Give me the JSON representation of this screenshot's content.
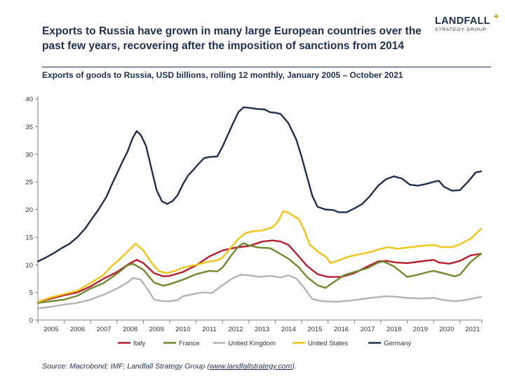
{
  "header": {
    "headline": "Exports to Russia have grown in many large European countries over the past few years, recovering after the imposition of sanctions from 2014",
    "logo_name": "LANDFALL",
    "logo_sub": "STRATEGY GROUP"
  },
  "chart_data": {
    "type": "line",
    "title": "Exports of goods to Russia, USD billions, rolling 12 monthly, January 2005 – October 2021",
    "xlabel": "",
    "ylabel": "USD billions",
    "xlim": [
      2005,
      2021.83
    ],
    "ylim": [
      0,
      40
    ],
    "yticks": [
      "0",
      "5",
      "10",
      "15",
      "20",
      "25",
      "30",
      "35",
      "40"
    ],
    "yticks_values": [
      0,
      5,
      10,
      15,
      20,
      25,
      30,
      35,
      40
    ],
    "xticks": [
      "2005",
      "2006",
      "2007",
      "2008",
      "2009",
      "2010",
      "2011",
      "2012",
      "2013",
      "2014",
      "2015",
      "2016",
      "2017",
      "2018",
      "2019",
      "2020",
      "2021"
    ],
    "legend_position": "bottom",
    "series": [
      {
        "name": "Italy",
        "color": "#b81f2e",
        "points": [
          [
            2005,
            3.3
          ],
          [
            2005.5,
            3.9
          ],
          [
            2006,
            4.5
          ],
          [
            2006.5,
            5.0
          ],
          [
            2007,
            6.1
          ],
          [
            2007.5,
            7.5
          ],
          [
            2008,
            8.7
          ],
          [
            2008.5,
            10.3
          ],
          [
            2008.75,
            10.9
          ],
          [
            2009,
            10.3
          ],
          [
            2009.4,
            8.5
          ],
          [
            2009.75,
            7.9
          ],
          [
            2010,
            8.0
          ],
          [
            2010.5,
            8.7
          ],
          [
            2011,
            9.9
          ],
          [
            2011.5,
            11.5
          ],
          [
            2012,
            12.6
          ],
          [
            2012.5,
            13.1
          ],
          [
            2013,
            13.4
          ],
          [
            2013.5,
            14.2
          ],
          [
            2013.9,
            14.4
          ],
          [
            2014.2,
            14.2
          ],
          [
            2014.5,
            13.6
          ],
          [
            2014.8,
            12.0
          ],
          [
            2015.2,
            9.8
          ],
          [
            2015.6,
            8.3
          ],
          [
            2016,
            7.8
          ],
          [
            2016.5,
            7.8
          ],
          [
            2017,
            8.5
          ],
          [
            2017.5,
            9.7
          ],
          [
            2017.9,
            10.6
          ],
          [
            2018.2,
            10.7
          ],
          [
            2018.6,
            10.4
          ],
          [
            2019,
            10.3
          ],
          [
            2019.5,
            10.6
          ],
          [
            2020,
            10.9
          ],
          [
            2020.2,
            10.4
          ],
          [
            2020.6,
            10.2
          ],
          [
            2021,
            10.7
          ],
          [
            2021.4,
            11.7
          ],
          [
            2021.8,
            12.0
          ]
        ]
      },
      {
        "name": "France",
        "color": "#6f8a2e",
        "points": [
          [
            2005,
            3.1
          ],
          [
            2005.5,
            3.4
          ],
          [
            2006,
            3.7
          ],
          [
            2006.5,
            4.4
          ],
          [
            2007,
            5.7
          ],
          [
            2007.5,
            6.7
          ],
          [
            2008,
            8.4
          ],
          [
            2008.4,
            9.9
          ],
          [
            2008.6,
            10.2
          ],
          [
            2009,
            9.1
          ],
          [
            2009.4,
            6.8
          ],
          [
            2009.75,
            6.2
          ],
          [
            2010,
            6.5
          ],
          [
            2010.5,
            7.3
          ],
          [
            2011,
            8.3
          ],
          [
            2011.5,
            8.9
          ],
          [
            2011.8,
            8.8
          ],
          [
            2012,
            9.5
          ],
          [
            2012.3,
            11.5
          ],
          [
            2012.6,
            13.3
          ],
          [
            2012.8,
            13.9
          ],
          [
            2013,
            13.5
          ],
          [
            2013.4,
            13.1
          ],
          [
            2013.8,
            13.0
          ],
          [
            2014,
            12.5
          ],
          [
            2014.5,
            11.1
          ],
          [
            2014.9,
            9.5
          ],
          [
            2015.2,
            7.8
          ],
          [
            2015.6,
            6.3
          ],
          [
            2015.9,
            5.8
          ],
          [
            2016.2,
            6.8
          ],
          [
            2016.6,
            8.1
          ],
          [
            2017,
            8.7
          ],
          [
            2017.5,
            9.4
          ],
          [
            2017.9,
            10.4
          ],
          [
            2018.1,
            10.6
          ],
          [
            2018.5,
            9.7
          ],
          [
            2019,
            7.8
          ],
          [
            2019.4,
            8.2
          ],
          [
            2019.8,
            8.7
          ],
          [
            2020,
            8.9
          ],
          [
            2020.5,
            8.3
          ],
          [
            2020.8,
            7.9
          ],
          [
            2021,
            8.2
          ],
          [
            2021.4,
            10.5
          ],
          [
            2021.8,
            12.0
          ]
        ]
      },
      {
        "name": "United Kingdom",
        "color": "#b4b4b4",
        "points": [
          [
            2005,
            2.1
          ],
          [
            2005.5,
            2.4
          ],
          [
            2006,
            2.8
          ],
          [
            2006.5,
            3.1
          ],
          [
            2007,
            3.7
          ],
          [
            2007.5,
            4.6
          ],
          [
            2008,
            5.7
          ],
          [
            2008.4,
            6.8
          ],
          [
            2008.6,
            7.6
          ],
          [
            2008.9,
            7.3
          ],
          [
            2009.2,
            5.3
          ],
          [
            2009.4,
            3.7
          ],
          [
            2009.75,
            3.4
          ],
          [
            2010,
            3.4
          ],
          [
            2010.3,
            3.6
          ],
          [
            2010.5,
            4.3
          ],
          [
            2011,
            4.8
          ],
          [
            2011.3,
            5.0
          ],
          [
            2011.6,
            4.9
          ],
          [
            2012,
            6.3
          ],
          [
            2012.4,
            7.6
          ],
          [
            2012.7,
            8.2
          ],
          [
            2013,
            8.1
          ],
          [
            2013.4,
            7.8
          ],
          [
            2013.8,
            8.0
          ],
          [
            2014.2,
            7.7
          ],
          [
            2014.5,
            8.1
          ],
          [
            2014.8,
            7.5
          ],
          [
            2015.1,
            5.8
          ],
          [
            2015.4,
            3.8
          ],
          [
            2015.8,
            3.4
          ],
          [
            2016.3,
            3.3
          ],
          [
            2016.8,
            3.5
          ],
          [
            2017.3,
            3.8
          ],
          [
            2017.8,
            4.1
          ],
          [
            2018.2,
            4.3
          ],
          [
            2018.6,
            4.2
          ],
          [
            2019,
            4.0
          ],
          [
            2019.5,
            3.9
          ],
          [
            2020,
            4.0
          ],
          [
            2020.4,
            3.6
          ],
          [
            2020.8,
            3.4
          ],
          [
            2021.2,
            3.6
          ],
          [
            2021.8,
            4.2
          ]
        ]
      },
      {
        "name": "United States",
        "color": "#f2c318",
        "points": [
          [
            2005,
            3.3
          ],
          [
            2005.5,
            4.1
          ],
          [
            2006,
            4.7
          ],
          [
            2006.5,
            5.3
          ],
          [
            2007,
            6.7
          ],
          [
            2007.5,
            8.2
          ],
          [
            2007.8,
            9.8
          ],
          [
            2008.1,
            11.0
          ],
          [
            2008.4,
            12.4
          ],
          [
            2008.7,
            13.8
          ],
          [
            2009,
            12.6
          ],
          [
            2009.3,
            10.4
          ],
          [
            2009.6,
            8.8
          ],
          [
            2009.9,
            8.5
          ],
          [
            2010.2,
            8.9
          ],
          [
            2010.5,
            9.5
          ],
          [
            2011,
            10.0
          ],
          [
            2011.5,
            10.6
          ],
          [
            2011.8,
            10.8
          ],
          [
            2012,
            11.3
          ],
          [
            2012.3,
            13.0
          ],
          [
            2012.6,
            14.7
          ],
          [
            2012.9,
            15.8
          ],
          [
            2013.2,
            16.1
          ],
          [
            2013.5,
            16.2
          ],
          [
            2013.9,
            16.8
          ],
          [
            2014.1,
            17.8
          ],
          [
            2014.3,
            19.7
          ],
          [
            2014.5,
            19.4
          ],
          [
            2014.9,
            18.2
          ],
          [
            2015.1,
            16.2
          ],
          [
            2015.3,
            13.7
          ],
          [
            2015.6,
            12.4
          ],
          [
            2015.9,
            11.5
          ],
          [
            2016.1,
            10.3
          ],
          [
            2016.4,
            10.8
          ],
          [
            2016.8,
            11.5
          ],
          [
            2017.2,
            11.9
          ],
          [
            2017.6,
            12.3
          ],
          [
            2018,
            12.9
          ],
          [
            2018.3,
            13.2
          ],
          [
            2018.6,
            12.9
          ],
          [
            2019,
            13.1
          ],
          [
            2019.5,
            13.4
          ],
          [
            2020,
            13.6
          ],
          [
            2020.3,
            13.2
          ],
          [
            2020.7,
            13.2
          ],
          [
            2021,
            13.7
          ],
          [
            2021.4,
            14.7
          ],
          [
            2021.8,
            16.5
          ]
        ]
      },
      {
        "name": "Germany",
        "color": "#1f2f4f",
        "points": [
          [
            2005,
            10.6
          ],
          [
            2005.3,
            11.3
          ],
          [
            2005.6,
            12.1
          ],
          [
            2005.9,
            13.0
          ],
          [
            2006.2,
            13.8
          ],
          [
            2006.5,
            15.0
          ],
          [
            2006.8,
            16.6
          ],
          [
            2007,
            18.0
          ],
          [
            2007.3,
            20.0
          ],
          [
            2007.6,
            22.3
          ],
          [
            2007.8,
            24.5
          ],
          [
            2008,
            26.5
          ],
          [
            2008.2,
            28.6
          ],
          [
            2008.4,
            30.5
          ],
          [
            2008.6,
            33.0
          ],
          [
            2008.75,
            34.2
          ],
          [
            2008.9,
            33.5
          ],
          [
            2009.1,
            31.5
          ],
          [
            2009.3,
            27.5
          ],
          [
            2009.5,
            23.5
          ],
          [
            2009.7,
            21.5
          ],
          [
            2009.9,
            21.0
          ],
          [
            2010.1,
            21.5
          ],
          [
            2010.3,
            22.6
          ],
          [
            2010.5,
            24.6
          ],
          [
            2010.7,
            26.2
          ],
          [
            2010.9,
            27.2
          ],
          [
            2011.1,
            28.3
          ],
          [
            2011.3,
            29.3
          ],
          [
            2011.5,
            29.5
          ],
          [
            2011.8,
            29.6
          ],
          [
            2012,
            31.4
          ],
          [
            2012.2,
            33.5
          ],
          [
            2012.4,
            35.6
          ],
          [
            2012.6,
            37.6
          ],
          [
            2012.8,
            38.5
          ],
          [
            2013,
            38.4
          ],
          [
            2013.3,
            38.2
          ],
          [
            2013.6,
            38.1
          ],
          [
            2013.8,
            37.6
          ],
          [
            2014,
            37.5
          ],
          [
            2014.2,
            37.3
          ],
          [
            2014.5,
            35.6
          ],
          [
            2014.8,
            32.6
          ],
          [
            2015,
            29.5
          ],
          [
            2015.2,
            26.0
          ],
          [
            2015.4,
            22.5
          ],
          [
            2015.6,
            20.5
          ],
          [
            2015.9,
            20.0
          ],
          [
            2016.2,
            19.9
          ],
          [
            2016.4,
            19.5
          ],
          [
            2016.7,
            19.5
          ],
          [
            2017,
            20.2
          ],
          [
            2017.3,
            21.0
          ],
          [
            2017.6,
            22.5
          ],
          [
            2017.9,
            24.3
          ],
          [
            2018.2,
            25.5
          ],
          [
            2018.5,
            26.0
          ],
          [
            2018.8,
            25.6
          ],
          [
            2019.1,
            24.5
          ],
          [
            2019.4,
            24.3
          ],
          [
            2019.7,
            24.6
          ],
          [
            2020,
            25.0
          ],
          [
            2020.2,
            25.2
          ],
          [
            2020.4,
            24.1
          ],
          [
            2020.7,
            23.4
          ],
          [
            2021,
            23.5
          ],
          [
            2021.3,
            25.0
          ],
          [
            2021.6,
            26.7
          ],
          [
            2021.8,
            26.9
          ]
        ]
      }
    ]
  },
  "footer": {
    "source_prefix": "Source: Macrobond; IMF; Landfall Strategy Group (",
    "source_link": "www.landfallstrategy.com",
    "source_suffix": ")."
  }
}
